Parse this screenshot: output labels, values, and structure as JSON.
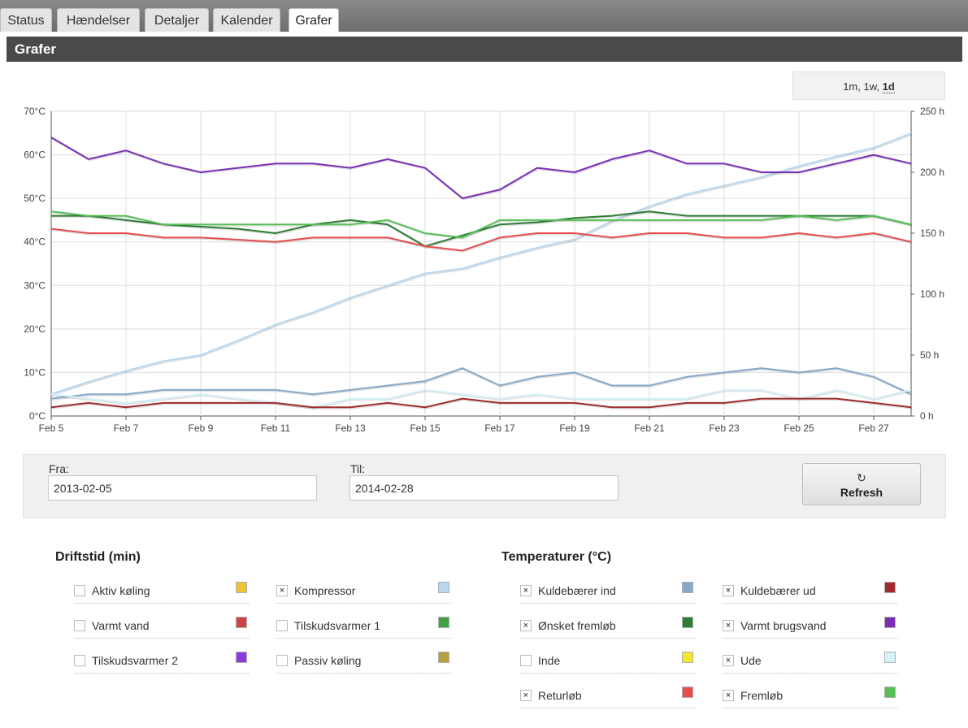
{
  "tabs": [
    {
      "label": "Status",
      "active": false
    },
    {
      "label": "Hændelser",
      "active": false
    },
    {
      "label": "Detaljer",
      "active": false
    },
    {
      "label": "Kalender",
      "active": false
    },
    {
      "label": "Grafer",
      "active": true
    }
  ],
  "page_title": "Grafer",
  "range": {
    "opt1": "1m",
    "opt2": "1w",
    "opt3": "1d",
    "sep": ", ",
    "selected": "1d"
  },
  "filters": {
    "from_label": "Fra:",
    "from_value": "2013-02-05",
    "to_label": "Til:",
    "to_value": "2014-02-28",
    "refresh_label": "Refresh",
    "refresh_icon": "↻"
  },
  "legend": {
    "driftstid": {
      "title": "Driftstid (min)",
      "items": [
        {
          "label": "Aktiv køling",
          "checked": false,
          "color": "#f0c23a"
        },
        {
          "label": "Kompressor",
          "checked": true,
          "color": "#b8d8f0"
        },
        {
          "label": "Varmt vand",
          "checked": false,
          "color": "#cc4444"
        },
        {
          "label": "Tilskudsvarmer 1",
          "checked": false,
          "color": "#44a044"
        },
        {
          "label": "Tilskudsvarmer 2",
          "checked": false,
          "color": "#8a3be0"
        },
        {
          "label": "Passiv køling",
          "checked": false,
          "color": "#b8a040"
        }
      ]
    },
    "temperaturer": {
      "title": "Temperaturer (°C)",
      "items": [
        {
          "label": "Kuldebærer ind",
          "checked": true,
          "color": "#88a8c8"
        },
        {
          "label": "Kuldebærer ud",
          "checked": true,
          "color": "#a02c2c"
        },
        {
          "label": "Ønsket fremløb",
          "checked": true,
          "color": "#2e7d32"
        },
        {
          "label": "Varmt brugsvand",
          "checked": true,
          "color": "#7b2fb8"
        },
        {
          "label": "Inde",
          "checked": false,
          "color": "#f5e62e"
        },
        {
          "label": "Ude",
          "checked": true,
          "color": "#d4f2f7"
        },
        {
          "label": "Returløb",
          "checked": true,
          "color": "#e84c4c"
        },
        {
          "label": "Fremløb",
          "checked": true,
          "color": "#55c055"
        }
      ]
    }
  },
  "chart_data": {
    "type": "line",
    "x": [
      "Feb 5",
      "Feb 6",
      "Feb 7",
      "Feb 8",
      "Feb 9",
      "Feb 10",
      "Feb 11",
      "Feb 12",
      "Feb 13",
      "Feb 14",
      "Feb 15",
      "Feb 16",
      "Feb 17",
      "Feb 18",
      "Feb 19",
      "Feb 20",
      "Feb 21",
      "Feb 22",
      "Feb 23",
      "Feb 24",
      "Feb 25",
      "Feb 26",
      "Feb 27",
      "Feb 28"
    ],
    "x_tick_labels": [
      "Feb 5",
      "Feb 7",
      "Feb 9",
      "Feb 11",
      "Feb 13",
      "Feb 15",
      "Feb 17",
      "Feb 19",
      "Feb 21",
      "Feb 23",
      "Feb 25",
      "Feb 27"
    ],
    "y_left": {
      "ylim": [
        0,
        70
      ],
      "unit": "°C",
      "ticks": [
        "0°C",
        "10°C",
        "20°C",
        "30°C",
        "40°C",
        "50°C",
        "60°C",
        "70°C"
      ]
    },
    "y_right": {
      "ylim": [
        0,
        250
      ],
      "unit": "h",
      "ticks": [
        "0 h",
        "50 h",
        "100 h",
        "150 h",
        "200 h",
        "250 h"
      ]
    },
    "grid": true,
    "series": [
      {
        "name": "Kompressor",
        "axis": "right",
        "color": "#b8d8f0",
        "values": [
          18,
          28,
          37,
          45,
          50,
          62,
          75,
          85,
          97,
          107,
          117,
          121,
          130,
          138,
          145,
          160,
          172,
          182,
          189,
          196,
          205,
          213,
          220,
          232
        ]
      },
      {
        "name": "Varmt brugsvand",
        "axis": "left",
        "color": "#7b2fb8",
        "values": [
          64,
          59,
          61,
          58,
          56,
          57,
          58,
          58,
          57,
          59,
          57,
          50,
          52,
          57,
          56,
          59,
          61,
          58,
          58,
          56,
          56,
          58,
          60,
          58
        ]
      },
      {
        "name": "Ønsket fremløb",
        "axis": "left",
        "color": "#2e7d32",
        "values": [
          46,
          46,
          45,
          44,
          43.5,
          43,
          42,
          44,
          45,
          44,
          39,
          41.5,
          44,
          44.5,
          45.5,
          46,
          47,
          46,
          46,
          46,
          46,
          46,
          46,
          44
        ]
      },
      {
        "name": "Fremløb",
        "axis": "left",
        "color": "#55c055",
        "values": [
          47,
          46,
          46,
          44,
          44,
          44,
          44,
          44,
          44,
          45,
          42,
          41,
          45,
          45,
          45,
          45,
          45,
          45,
          45,
          45,
          46,
          45,
          46,
          44
        ]
      },
      {
        "name": "Returløb",
        "axis": "left",
        "color": "#e84c4c",
        "values": [
          43,
          42,
          42,
          41,
          41,
          40.5,
          40,
          41,
          41,
          41,
          39,
          38,
          41,
          42,
          42,
          41,
          42,
          42,
          41,
          41,
          42,
          41,
          42,
          40
        ]
      },
      {
        "name": "Kuldebærer ind",
        "axis": "left",
        "color": "#88a8c8",
        "values": [
          4,
          5,
          5,
          6,
          6,
          6,
          6,
          5,
          6,
          7,
          8,
          11,
          7,
          9,
          10,
          7,
          7,
          9,
          10,
          11,
          10,
          11,
          9,
          5
        ]
      },
      {
        "name": "Ude",
        "axis": "left",
        "color": "#d4f2f7",
        "values": [
          5,
          4,
          3,
          4,
          5,
          4,
          3,
          2,
          4,
          4,
          6,
          5,
          4,
          5,
          4,
          4,
          4,
          4,
          6,
          6,
          4,
          6,
          4,
          6
        ]
      },
      {
        "name": "Kuldebærer ud",
        "axis": "left",
        "color": "#a02c2c",
        "values": [
          2,
          3,
          2,
          3,
          3,
          3,
          3,
          2,
          2,
          3,
          2,
          4,
          3,
          3,
          3,
          2,
          2,
          3,
          3,
          4,
          4,
          4,
          3,
          2
        ]
      }
    ]
  }
}
